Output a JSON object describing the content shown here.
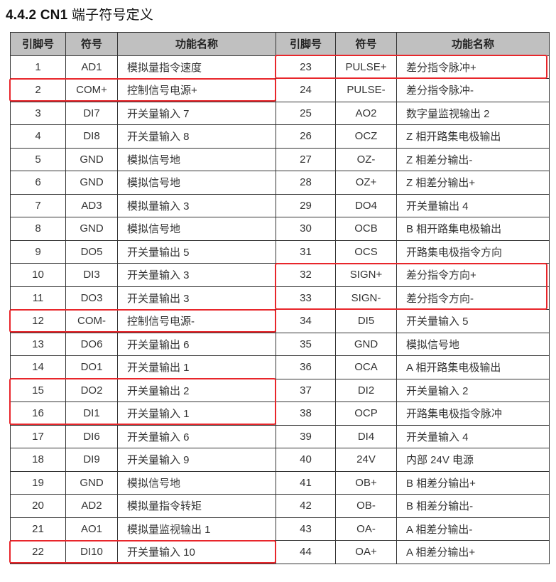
{
  "title": {
    "number": "4.4.2 CN1",
    "text": "端子符号定义"
  },
  "headers": [
    "引脚号",
    "符号",
    "功能名称",
    "引脚号",
    "符号",
    "功能名称"
  ],
  "rows": [
    [
      [
        "1",
        "AD1",
        "模拟量指令速度"
      ],
      [
        "23",
        "PULSE+",
        "差分指令脉冲+"
      ]
    ],
    [
      [
        "2",
        "COM+",
        "控制信号电源+"
      ],
      [
        "24",
        "PULSE-",
        "差分指令脉冲-"
      ]
    ],
    [
      [
        "3",
        "DI7",
        "开关量输入 7"
      ],
      [
        "25",
        "AO2",
        "数字量监视输出 2"
      ]
    ],
    [
      [
        "4",
        "DI8",
        "开关量输入 8"
      ],
      [
        "26",
        "OCZ",
        "Z 相开路集电极输出"
      ]
    ],
    [
      [
        "5",
        "GND",
        "模拟信号地"
      ],
      [
        "27",
        "OZ-",
        "Z 相差分输出-"
      ]
    ],
    [
      [
        "6",
        "GND",
        "模拟信号地"
      ],
      [
        "28",
        "OZ+",
        "Z 相差分输出+"
      ]
    ],
    [
      [
        "7",
        "AD3",
        "模拟量输入 3"
      ],
      [
        "29",
        "DO4",
        "开关量输出 4"
      ]
    ],
    [
      [
        "8",
        "GND",
        "模拟信号地"
      ],
      [
        "30",
        "OCB",
        "B 相开路集电极输出"
      ]
    ],
    [
      [
        "9",
        "DO5",
        "开关量输出 5"
      ],
      [
        "31",
        "OCS",
        "开路集电极指令方向"
      ]
    ],
    [
      [
        "10",
        "DI3",
        "开关量输入 3"
      ],
      [
        "32",
        "SIGN+",
        "差分指令方向+"
      ]
    ],
    [
      [
        "11",
        "DO3",
        "开关量输出 3"
      ],
      [
        "33",
        "SIGN-",
        "差分指令方向-"
      ]
    ],
    [
      [
        "12",
        "COM-",
        "控制信号电源-"
      ],
      [
        "34",
        "DI5",
        "开关量输入 5"
      ]
    ],
    [
      [
        "13",
        "DO6",
        "开关量输出 6"
      ],
      [
        "35",
        "GND",
        "模拟信号地"
      ]
    ],
    [
      [
        "14",
        "DO1",
        "开关量输出 1"
      ],
      [
        "36",
        "OCA",
        "A 相开路集电极输出"
      ]
    ],
    [
      [
        "15",
        "DO2",
        "开关量输出 2"
      ],
      [
        "37",
        "DI2",
        "开关量输入 2"
      ]
    ],
    [
      [
        "16",
        "DI1",
        "开关量输入 1"
      ],
      [
        "38",
        "OCP",
        "开路集电极指令脉冲"
      ]
    ],
    [
      [
        "17",
        "DI6",
        "开关量输入 6"
      ],
      [
        "39",
        "DI4",
        "开关量输入 4"
      ]
    ],
    [
      [
        "18",
        "DI9",
        "开关量输入 9"
      ],
      [
        "40",
        "24V",
        "内部 24V 电源"
      ]
    ],
    [
      [
        "19",
        "GND",
        "模拟信号地"
      ],
      [
        "41",
        "OB+",
        "B 相差分输出+"
      ]
    ],
    [
      [
        "20",
        "AD2",
        "模拟量指令转矩"
      ],
      [
        "42",
        "OB-",
        "B 相差分输出-"
      ]
    ],
    [
      [
        "21",
        "AO1",
        "模拟量监视输出 1"
      ],
      [
        "43",
        "OA-",
        "A 相差分输出-"
      ]
    ],
    [
      [
        "22",
        "DI10",
        "开关量输入 10"
      ],
      [
        "44",
        "OA+",
        "A 相差分输出+"
      ]
    ]
  ],
  "highlights": [
    {
      "side": "right",
      "pins": [
        "23"
      ]
    },
    {
      "side": "left",
      "pins": [
        "2"
      ]
    },
    {
      "side": "right",
      "pins": [
        "32",
        "33"
      ]
    },
    {
      "side": "left",
      "pins": [
        "12"
      ]
    },
    {
      "side": "left",
      "pins": [
        "15",
        "16"
      ]
    },
    {
      "side": "left",
      "pins": [
        "22"
      ]
    }
  ],
  "colors": {
    "highlight": "#e8262b",
    "header_bg": "#c0c0c0"
  }
}
